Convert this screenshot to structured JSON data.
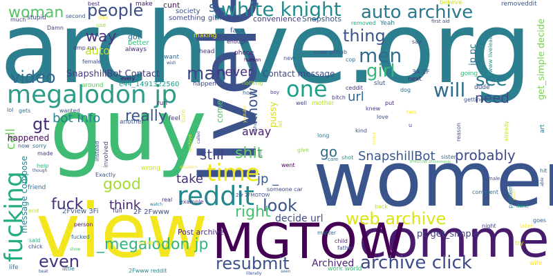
{
  "words": [
    {
      "text": "archive.org",
      "color": "#2c7f8e"
    },
    {
      "text": "liveleak",
      "color": "#3b528b"
    },
    {
      "text": "guy",
      "color": "#3fbb73"
    },
    {
      "text": "women",
      "color": "#3a548c"
    },
    {
      "text": "view",
      "color": "#f3e61f"
    },
    {
      "text": "comments",
      "color": "#481b6d"
    },
    {
      "text": "MGTOW",
      "color": "#440154"
    },
    {
      "text": "megalodon jp",
      "color": "#2e9c88"
    },
    {
      "text": "white knight",
      "color": "#238a8d"
    },
    {
      "text": "auto archive",
      "color": "#29788e"
    },
    {
      "text": "reddit",
      "color": "#23888e"
    },
    {
      "text": "time",
      "color": "#f0e51c"
    },
    {
      "text": "fucking",
      "color": "#26ad80"
    },
    {
      "text": "archive click",
      "color": "#3e4b89"
    },
    {
      "text": "web archive",
      "color": "#dce319"
    },
    {
      "text": "resubmit",
      "color": "#3b528b"
    },
    {
      "text": "one",
      "color": "#1f9e89"
    },
    {
      "text": "will",
      "color": "#2f6c8e"
    },
    {
      "text": "woman",
      "color": "#54c568"
    },
    {
      "text": "people",
      "color": "#3d4d8a"
    },
    {
      "text": "men",
      "color": "#2f6c8e"
    },
    {
      "text": "girl",
      "color": "#35b779"
    },
    {
      "text": "man",
      "color": "#3f4788"
    },
    {
      "text": "thing",
      "color": "#39568c"
    },
    {
      "text": "video",
      "color": "#30688e"
    },
    {
      "text": "good",
      "color": "#a5db36"
    },
    {
      "text": "fuck",
      "color": "#472d7b"
    },
    {
      "text": "think",
      "color": "#482475"
    },
    {
      "text": "look",
      "color": "#3b528b"
    },
    {
      "text": "shit",
      "color": "#5ec962"
    },
    {
      "text": "probably",
      "color": "#3e4989"
    },
    {
      "text": "SnapshillBot",
      "color": "#39568c"
    },
    {
      "text": "_megalodon jp",
      "color": "#31b57b"
    },
    {
      "text": "even",
      "color": "#46327e"
    },
    {
      "text": "right",
      "color": "#48c16e"
    },
    {
      "text": "really",
      "color": "#3a548c"
    },
    {
      "text": "take",
      "color": "#472c7a"
    },
    {
      "text": "need",
      "color": "#3e4989"
    },
    {
      "text": "see",
      "color": "#2a788e"
    },
    {
      "text": "way",
      "color": "#46327e"
    },
    {
      "text": "auto",
      "color": "#c2df23"
    },
    {
      "text": "s",
      "color": "#33628d"
    },
    {
      "text": "gt",
      "color": "#482878"
    },
    {
      "text": "bot Info",
      "color": "#25848e"
    },
    {
      "text": "SnapshillBot Contact",
      "color": "#443a83"
    },
    {
      "text": "never",
      "color": "#46307e"
    },
    {
      "text": "still",
      "color": "#424186"
    },
    {
      "text": "away",
      "color": "#482173"
    },
    {
      "text": "url",
      "color": "#33638d"
    },
    {
      "text": "go",
      "color": "#2f6c8e"
    },
    {
      "text": "know",
      "color": "#3b528b"
    },
    {
      "text": "call",
      "color": "#6ccd5a"
    },
    {
      "text": "jp _",
      "color": "#355f8d"
    },
    {
      "text": "Contact message",
      "color": "#3e4989"
    },
    {
      "text": "pc get_simple",
      "color": "#433e85"
    },
    {
      "text": "decide url",
      "color": "#3e4c8a"
    },
    {
      "text": "Archived",
      "color": "#482374"
    },
    {
      "text": "get_simple decide",
      "color": "#7ad151"
    },
    {
      "text": "jp pc",
      "color": "#2d718e"
    },
    {
      "text": "pussy",
      "color": "#d2e21b"
    },
    {
      "text": "come",
      "color": "#52c569"
    },
    {
      "text": "e44_1491322560",
      "color": "#1f9a8a"
    },
    {
      "text": "message compose",
      "color": "#26828e"
    },
    {
      "text": "happened",
      "color": "#46085c"
    },
    {
      "text": "Post archive",
      "color": "#482979"
    },
    {
      "text": "2Fview 3Fi",
      "color": "#38598c"
    },
    {
      "text": "2F 2Fwww",
      "color": "#3d4e8a"
    },
    {
      "text": "Snapshots",
      "color": "#3a538b"
    },
    {
      "text": "convenience",
      "color": "#443a83"
    },
    {
      "text": "github io",
      "color": "#3f4788"
    },
    {
      "text": "cunt",
      "color": "#471365"
    },
    {
      "text": "society",
      "color": "#3a548c"
    },
    {
      "text": "something",
      "color": "#404588"
    },
    {
      "text": "face",
      "color": "#38588c"
    },
    {
      "text": "removeddit",
      "color": "#39568c"
    },
    {
      "text": "believe",
      "color": "#d0e11c"
    },
    {
      "text": "first aid",
      "color": "#404688"
    },
    {
      "text": "best",
      "color": "#472f7d"
    },
    {
      "text": "second",
      "color": "#3b528b"
    },
    {
      "text": "stupid",
      "color": "#414487"
    },
    {
      "text": "much",
      "color": "#423f85"
    },
    {
      "text": "Damn",
      "color": "#443983"
    },
    {
      "text": "make",
      "color": "#481d6f"
    },
    {
      "text": "day",
      "color": "#fde725"
    },
    {
      "text": "use",
      "color": "#a0da39"
    },
    {
      "text": "amp run",
      "color": "#46327e"
    },
    {
      "text": "female",
      "color": "#3b528b"
    },
    {
      "text": "got",
      "color": "#2c728e"
    },
    {
      "text": "better",
      "color": "#38b977"
    },
    {
      "text": "always",
      "color": "#482677"
    },
    {
      "text": "making",
      "color": "#fde725"
    },
    {
      "text": "enough",
      "color": "#472a7a"
    },
    {
      "text": "head",
      "color": "#46337f"
    },
    {
      "text": "phone",
      "color": "#48186a"
    },
    {
      "text": "mean",
      "color": "#3a548c"
    },
    {
      "text": "human",
      "color": "#440154"
    },
    {
      "text": "Yeah",
      "color": "#2a768e"
    },
    {
      "text": "removed",
      "color": "#22a785"
    },
    {
      "text": "snew github",
      "color": "#3a548c"
    },
    {
      "text": "cop",
      "color": "#31688e"
    },
    {
      "text": "new",
      "color": "#3b528b"
    },
    {
      "text": "3A 2F",
      "color": "#3e4a89"
    },
    {
      "text": "next",
      "color": "#482475"
    },
    {
      "text": "say",
      "color": "#3f4889"
    },
    {
      "text": "going",
      "color": "#35b779"
    },
    {
      "text": "dude",
      "color": "#3c4f8a"
    },
    {
      "text": "getting",
      "color": "#3b528b"
    },
    {
      "text": "happen",
      "color": "#3f4788"
    },
    {
      "text": "around",
      "color": "#5ec962"
    },
    {
      "text": "nothing",
      "color": "#9fda3a"
    },
    {
      "text": "hope",
      "color": "#355f8d"
    },
    {
      "text": "boy",
      "color": "#404588"
    },
    {
      "text": "slut",
      "color": "#3d4e8a"
    },
    {
      "text": "ceddit",
      "color": "#472e7c"
    },
    {
      "text": "dog",
      "color": "#2d718e"
    },
    {
      "text": "well",
      "color": "#414487"
    },
    {
      "text": "mother",
      "color": "#b5de2b"
    },
    {
      "text": "bitch",
      "color": "#443b84"
    },
    {
      "text": "knew",
      "color": "#433d84"
    },
    {
      "text": "love",
      "color": "#3e4c8a"
    },
    {
      "text": "put",
      "color": "#482071"
    },
    {
      "text": "two",
      "color": "#fde725"
    },
    {
      "text": "kind",
      "color": "#3b528b"
    },
    {
      "text": "u",
      "color": "#414487"
    },
    {
      "text": "long",
      "color": "#2a778e"
    },
    {
      "text": "give",
      "color": "#8fd744"
    },
    {
      "text": "shot",
      "color": "#20928c"
    },
    {
      "text": "care",
      "color": "#2a768e"
    },
    {
      "text": "sister",
      "color": "#31678e"
    },
    {
      "text": "went",
      "color": "#440154"
    },
    {
      "text": "someone car",
      "color": "#3f4788"
    },
    {
      "text": "2Fr 2FMGTOW",
      "color": "#3a548c"
    },
    {
      "text": "comment",
      "color": "#2d708e"
    },
    {
      "text": "male",
      "color": "#3d4d8a"
    },
    {
      "text": "back",
      "color": "#b8de29"
    },
    {
      "text": "night",
      "color": "#3e4a89"
    },
    {
      "text": "later",
      "color": "#fde725"
    },
    {
      "text": "done",
      "color": "#1fa088"
    },
    {
      "text": "try",
      "color": "#dde318"
    },
    {
      "text": "wife",
      "color": "#fde725"
    },
    {
      "text": "goes",
      "color": "#34608d"
    },
    {
      "text": "hit",
      "color": "#2c718e"
    },
    {
      "text": "child",
      "color": "#481f70"
    },
    {
      "text": "father",
      "color": "#3c4f8a"
    },
    {
      "text": "matter",
      "color": "#2e6e8e"
    },
    {
      "text": "work world",
      "color": "#3fbc73"
    },
    {
      "text": "literally",
      "color": "#3b528b"
    },
    {
      "text": "seen",
      "color": "#31688e"
    },
    {
      "text": "life",
      "color": "#2c728e"
    },
    {
      "text": "beat",
      "color": "#3b528b"
    },
    {
      "text": "little",
      "color": "#2a788e"
    },
    {
      "text": "2Fwww reddit",
      "color": "#23888e"
    },
    {
      "text": "actually",
      "color": "#fde725"
    },
    {
      "text": "show",
      "color": "#48c16e"
    },
    {
      "text": "chick",
      "color": "#3f4788"
    },
    {
      "text": "said",
      "color": "#25ab82"
    },
    {
      "text": "person",
      "color": "#471063"
    },
    {
      "text": "fucked",
      "color": "#31688e"
    },
    {
      "text": "wrong",
      "color": "#c8e020"
    },
    {
      "text": "Exactly",
      "color": "#3b528b"
    },
    {
      "text": "full",
      "color": "#414487"
    },
    {
      "text": "example",
      "color": "#453781"
    },
    {
      "text": "real",
      "color": "#482878"
    },
    {
      "text": "watch",
      "color": "#2a788e"
    },
    {
      "text": "friend",
      "color": "#2c728e"
    },
    {
      "text": "help",
      "color": "#2fb47c"
    },
    {
      "text": "though",
      "color": "#3b528b"
    },
    {
      "text": "made",
      "color": "#443983"
    },
    {
      "text": "now",
      "color": "#3b528b"
    },
    {
      "text": "sorry",
      "color": "#2e6f8e"
    },
    {
      "text": "wanted",
      "color": "#39558c"
    },
    {
      "text": "gets",
      "color": "#2e6f8e"
    },
    {
      "text": "lol",
      "color": "#39568c"
    },
    {
      "text": "end",
      "color": "#b5de2b"
    },
    {
      "text": "another",
      "color": "#3a548c"
    },
    {
      "text": "run",
      "color": "#482475"
    },
    {
      "text": "feel",
      "color": "#46307e"
    },
    {
      "text": "every",
      "color": "#440154"
    },
    {
      "text": "want",
      "color": "#2f6c8e"
    },
    {
      "text": "wish",
      "color": "#3b528b"
    },
    {
      "text": "sure",
      "color": "#fde725"
    },
    {
      "text": "involved",
      "color": "#3f4788"
    },
    {
      "text": "instead",
      "color": "#3b528b"
    },
    {
      "text": "called",
      "color": "#3e4a89"
    },
    {
      "text": "archive",
      "color": "#d8e219"
    },
    {
      "text": "youtube",
      "color": "#fde725"
    },
    {
      "text": "whore",
      "color": "#3b528b"
    },
    {
      "text": "god",
      "color": "#3b528b"
    },
    {
      "text": "situation",
      "color": "#fde725"
    },
    {
      "text": "notice",
      "color": "#fde725"
    },
    {
      "text": "let",
      "color": "#dde318"
    },
    {
      "text": "reason",
      "color": "#3b528b"
    },
    {
      "text": "already",
      "color": "#c0df25"
    },
    {
      "text": "art",
      "color": "#2c728e"
    },
    {
      "text": "able",
      "color": "#3b528b"
    },
    {
      "text": "problem",
      "color": "#2a788e"
    },
    {
      "text": "2Fwww liveleak",
      "color": "#21918c"
    },
    {
      "text": "3FMGTOW 2Fcomments",
      "color": "#5ec962"
    },
    {
      "text": "post",
      "color": "#fde725"
    }
  ]
}
